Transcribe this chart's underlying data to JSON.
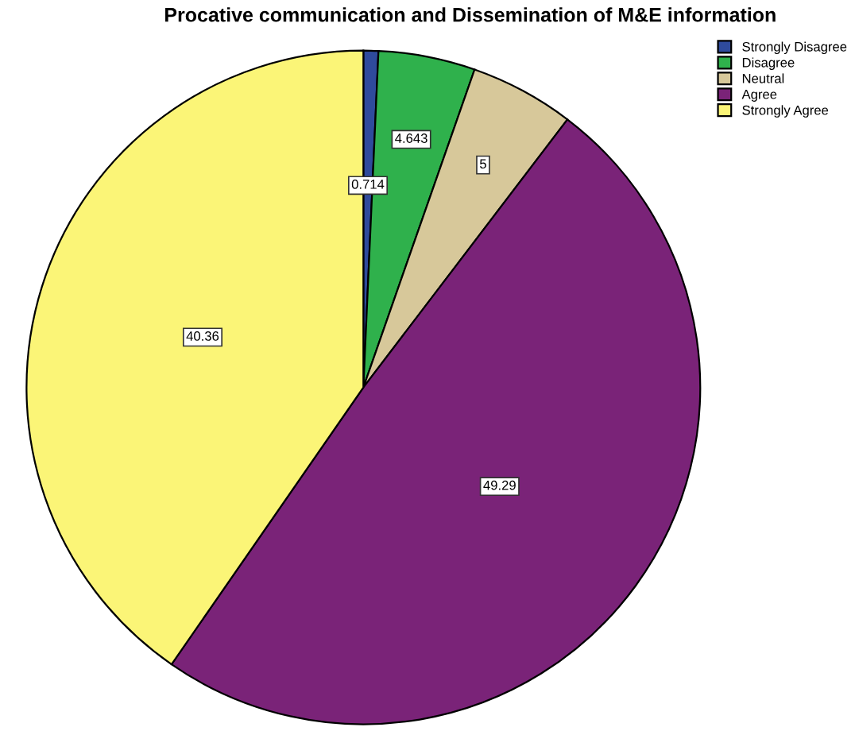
{
  "chart_data": {
    "type": "pie",
    "title": "Procative communication and Dissemination of M&E information",
    "categories": [
      "Strongly Disagree",
      "Disagree",
      "Neutral",
      "Agree",
      "Strongly Agree"
    ],
    "values": [
      0.714,
      4.643,
      5,
      49.29,
      40.36
    ],
    "colors": [
      "#2f4b9c",
      "#2fb14c",
      "#d7c89a",
      "#7a2378",
      "#fbf577"
    ],
    "data_labels": true,
    "legend": "top right"
  }
}
